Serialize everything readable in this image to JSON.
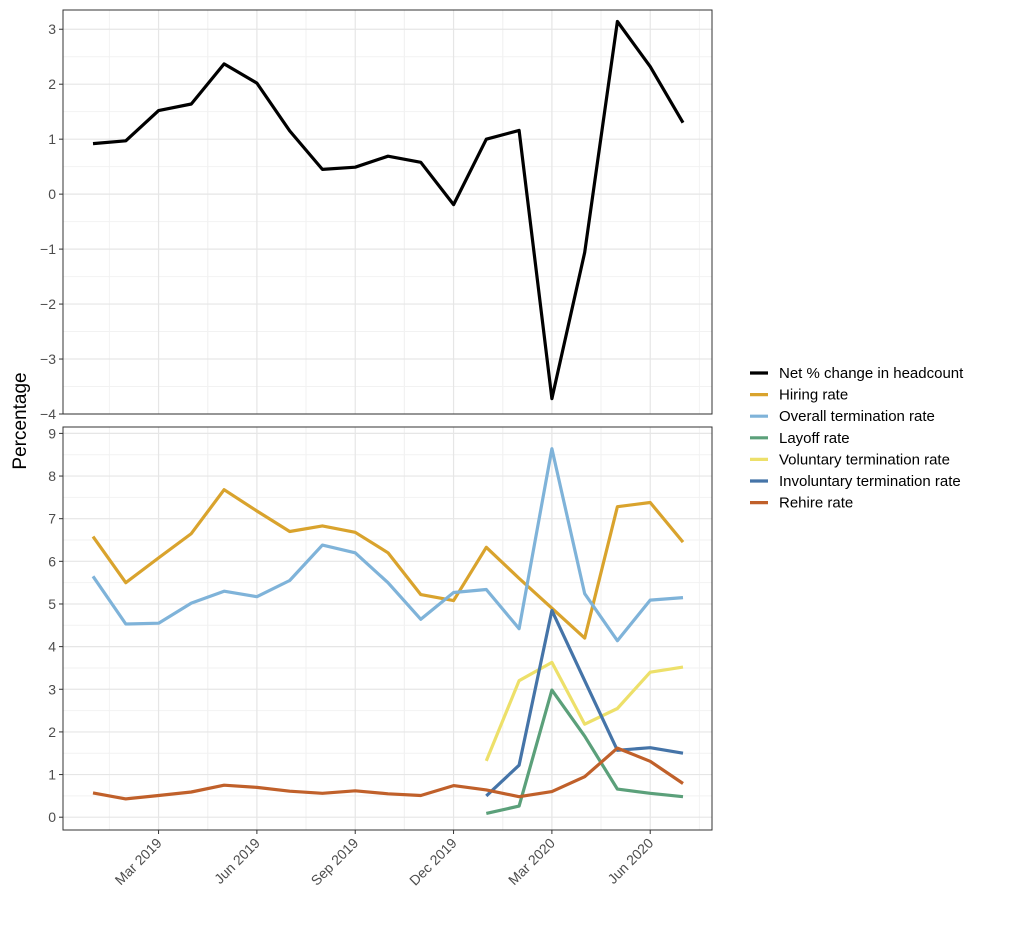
{
  "chart_data": {
    "type": "line",
    "ylabel": "Percentage",
    "x": [
      "2019-01",
      "2019-02",
      "2019-03",
      "2019-04",
      "2019-05",
      "2019-06",
      "2019-07",
      "2019-08",
      "2019-09",
      "2019-10",
      "2019-11",
      "2019-12",
      "2020-01",
      "2020-02",
      "2020-03",
      "2020-04",
      "2020-05",
      "2020-06",
      "2020-07"
    ],
    "x_tick_labels": [
      {
        "date": "2019-03",
        "label": "Mar 2019"
      },
      {
        "date": "2019-06",
        "label": "Jun 2019"
      },
      {
        "date": "2019-09",
        "label": "Sep 2019"
      },
      {
        "date": "2019-12",
        "label": "Dec 2019"
      },
      {
        "date": "2020-03",
        "label": "Mar 2020"
      },
      {
        "date": "2020-06",
        "label": "Jun 2020"
      }
    ],
    "panels": [
      {
        "ylim": [
          -4,
          3.35
        ],
        "y_ticks": [
          -4,
          -3,
          -2,
          -1,
          0,
          1,
          2,
          3
        ],
        "y_tick_labels": [
          "−4",
          "−3",
          "−2",
          "−1",
          "0",
          "1",
          "2",
          "3"
        ],
        "series": [
          {
            "name": "Net % change in headcount",
            "color": "#000000",
            "values": [
              0.92,
              0.97,
              1.52,
              1.64,
              2.37,
              2.02,
              1.15,
              0.45,
              0.49,
              0.69,
              0.58,
              -0.19,
              1.0,
              1.16,
              -3.72,
              -1.06,
              3.14,
              2.32,
              1.3
            ]
          }
        ]
      },
      {
        "ylim": [
          -0.3,
          9.15
        ],
        "y_ticks": [
          0,
          1,
          2,
          3,
          4,
          5,
          6,
          7,
          8,
          9
        ],
        "y_tick_labels": [
          "0",
          "1",
          "2",
          "3",
          "4",
          "5",
          "6",
          "7",
          "8",
          "9"
        ],
        "series": [
          {
            "name": "Hiring rate",
            "color": "#D9A32D",
            "values": [
              6.58,
              5.5,
              6.08,
              6.65,
              7.68,
              7.18,
              6.7,
              6.83,
              6.68,
              6.2,
              5.22,
              5.08,
              6.33,
              5.6,
              4.9,
              4.2,
              7.28,
              7.38,
              6.45
            ]
          },
          {
            "name": "Overall termination rate",
            "color": "#7FB3D9",
            "values": [
              5.65,
              4.53,
              4.55,
              5.02,
              5.3,
              5.17,
              5.55,
              6.38,
              6.2,
              5.5,
              4.64,
              5.27,
              5.34,
              4.42,
              8.64,
              5.24,
              4.14,
              5.09,
              5.15
            ]
          },
          {
            "name": "Layoff rate",
            "color": "#5BA07A",
            "values": [
              null,
              null,
              null,
              null,
              null,
              null,
              null,
              null,
              null,
              null,
              null,
              null,
              0.09,
              0.26,
              2.98,
              1.9,
              0.66,
              0.56,
              0.48
            ]
          },
          {
            "name": "Voluntary termination rate",
            "color": "#EDE06A",
            "values": [
              null,
              null,
              null,
              null,
              null,
              null,
              null,
              null,
              null,
              null,
              null,
              null,
              1.32,
              3.2,
              3.63,
              2.18,
              2.55,
              3.4,
              3.52
            ]
          },
          {
            "name": "Involuntary termination rate",
            "color": "#4574A8",
            "values": [
              null,
              null,
              null,
              null,
              null,
              null,
              null,
              null,
              null,
              null,
              null,
              null,
              0.5,
              1.22,
              4.85,
              3.2,
              1.57,
              1.63,
              1.5
            ]
          },
          {
            "name": "Rehire rate",
            "color": "#C0602A",
            "values": [
              0.57,
              0.43,
              0.51,
              0.59,
              0.75,
              0.7,
              0.61,
              0.56,
              0.62,
              0.55,
              0.51,
              0.74,
              0.64,
              0.48,
              0.6,
              0.95,
              1.62,
              1.31,
              0.79
            ]
          }
        ]
      }
    ],
    "legend_position": "right",
    "grid": true
  }
}
